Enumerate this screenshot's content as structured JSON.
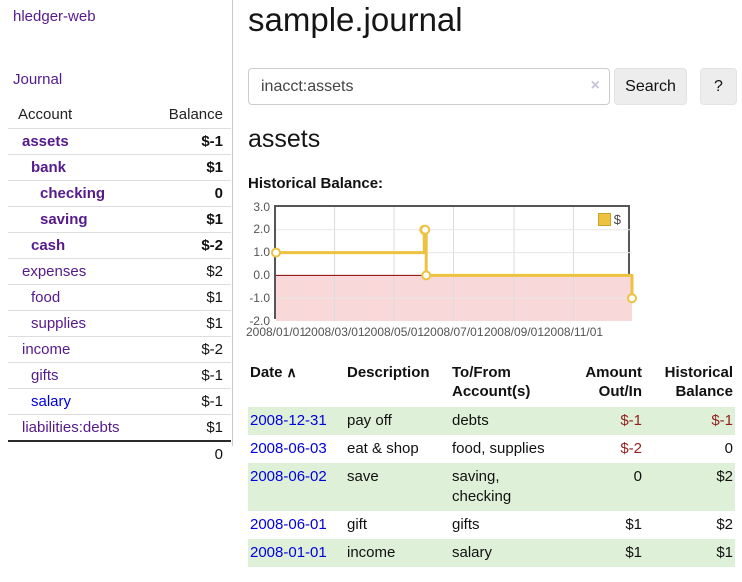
{
  "sidebar": {
    "brand": "hledger-web",
    "journal_link": "Journal",
    "accounts_table": {
      "headers": {
        "account": "Account",
        "balance": "Balance"
      },
      "rows": [
        {
          "name": "assets",
          "balance": "$-1"
        },
        {
          "name": "bank",
          "balance": "$1"
        },
        {
          "name": "checking",
          "balance": "0"
        },
        {
          "name": "saving",
          "balance": "$1"
        },
        {
          "name": "cash",
          "balance": "$-2"
        },
        {
          "name": "expenses",
          "balance": "$2"
        },
        {
          "name": "food",
          "balance": "$1"
        },
        {
          "name": "supplies",
          "balance": "$1"
        },
        {
          "name": "income",
          "balance": "$-2"
        },
        {
          "name": "gifts",
          "balance": "$-1"
        },
        {
          "name": "salary",
          "balance": "$-1"
        },
        {
          "name": "liabilities:debts",
          "balance": "$1"
        }
      ],
      "total": "0"
    }
  },
  "main": {
    "title": "sample.journal",
    "search": {
      "value": "inacct:assets",
      "clear_icon": "×",
      "button_label": "Search",
      "help_label": "?"
    },
    "account_heading": "assets",
    "chart_heading": "Historical Balance:",
    "register": {
      "headers": {
        "date": "Date",
        "sort_icon": "∧",
        "description": "Description",
        "accounts": "To/From Account(s)",
        "amount": "Amount Out/In",
        "balance": "Historical Balance"
      },
      "rows": [
        {
          "date": "2008-12-31",
          "description": "pay off",
          "accounts": "debts",
          "amount": "$-1",
          "balance": "$-1"
        },
        {
          "date": "2008-06-03",
          "description": "eat & shop",
          "accounts": "food, supplies",
          "amount": "$-2",
          "balance": "0"
        },
        {
          "date": "2008-06-02",
          "description": "save",
          "accounts": "saving, checking",
          "amount": "0",
          "balance": "$2"
        },
        {
          "date": "2008-06-01",
          "description": "gift",
          "accounts": "gifts",
          "amount": "$1",
          "balance": "$2"
        },
        {
          "date": "2008-01-01",
          "description": "income",
          "accounts": "salary",
          "amount": "$1",
          "balance": "$1"
        }
      ]
    }
  },
  "chart_data": {
    "type": "line",
    "style": "step",
    "title": "Historical Balance",
    "series": [
      {
        "name": "$",
        "points": [
          [
            "2008-01-01",
            1
          ],
          [
            "2008-06-01",
            2
          ],
          [
            "2008-06-02",
            2
          ],
          [
            "2008-06-03",
            0
          ],
          [
            "2008-12-31",
            -1
          ]
        ]
      }
    ],
    "x_ticks": [
      "2008/01/01",
      "2008/03/01",
      "2008/05/01",
      "2008/07/01",
      "2008/09/01",
      "2008/11/01"
    ],
    "y_ticks": [
      "3.0",
      "2.0",
      "1.0",
      "0.0",
      "-1.0",
      "-2.0"
    ],
    "xlim": [
      "2008-01-01",
      "2008-12-31"
    ],
    "ylim": [
      -2,
      3
    ],
    "grid": true,
    "legend": {
      "position": "top-right",
      "label": "$"
    },
    "line_color": "#edc240",
    "marker_fill": "#ffffff",
    "zero_line_color": "#8b0000",
    "negative_region_color": "#f8d8d8"
  },
  "colors": {
    "visited_link_purple": "#551a8b",
    "link_blue": "#0000dd",
    "negative_strong": "#941f1f",
    "negative_soft": "#b96e6e",
    "zebra_row_green": "#dff0d8",
    "button_gray": "#ededed",
    "chart_gold": "#edc240"
  }
}
